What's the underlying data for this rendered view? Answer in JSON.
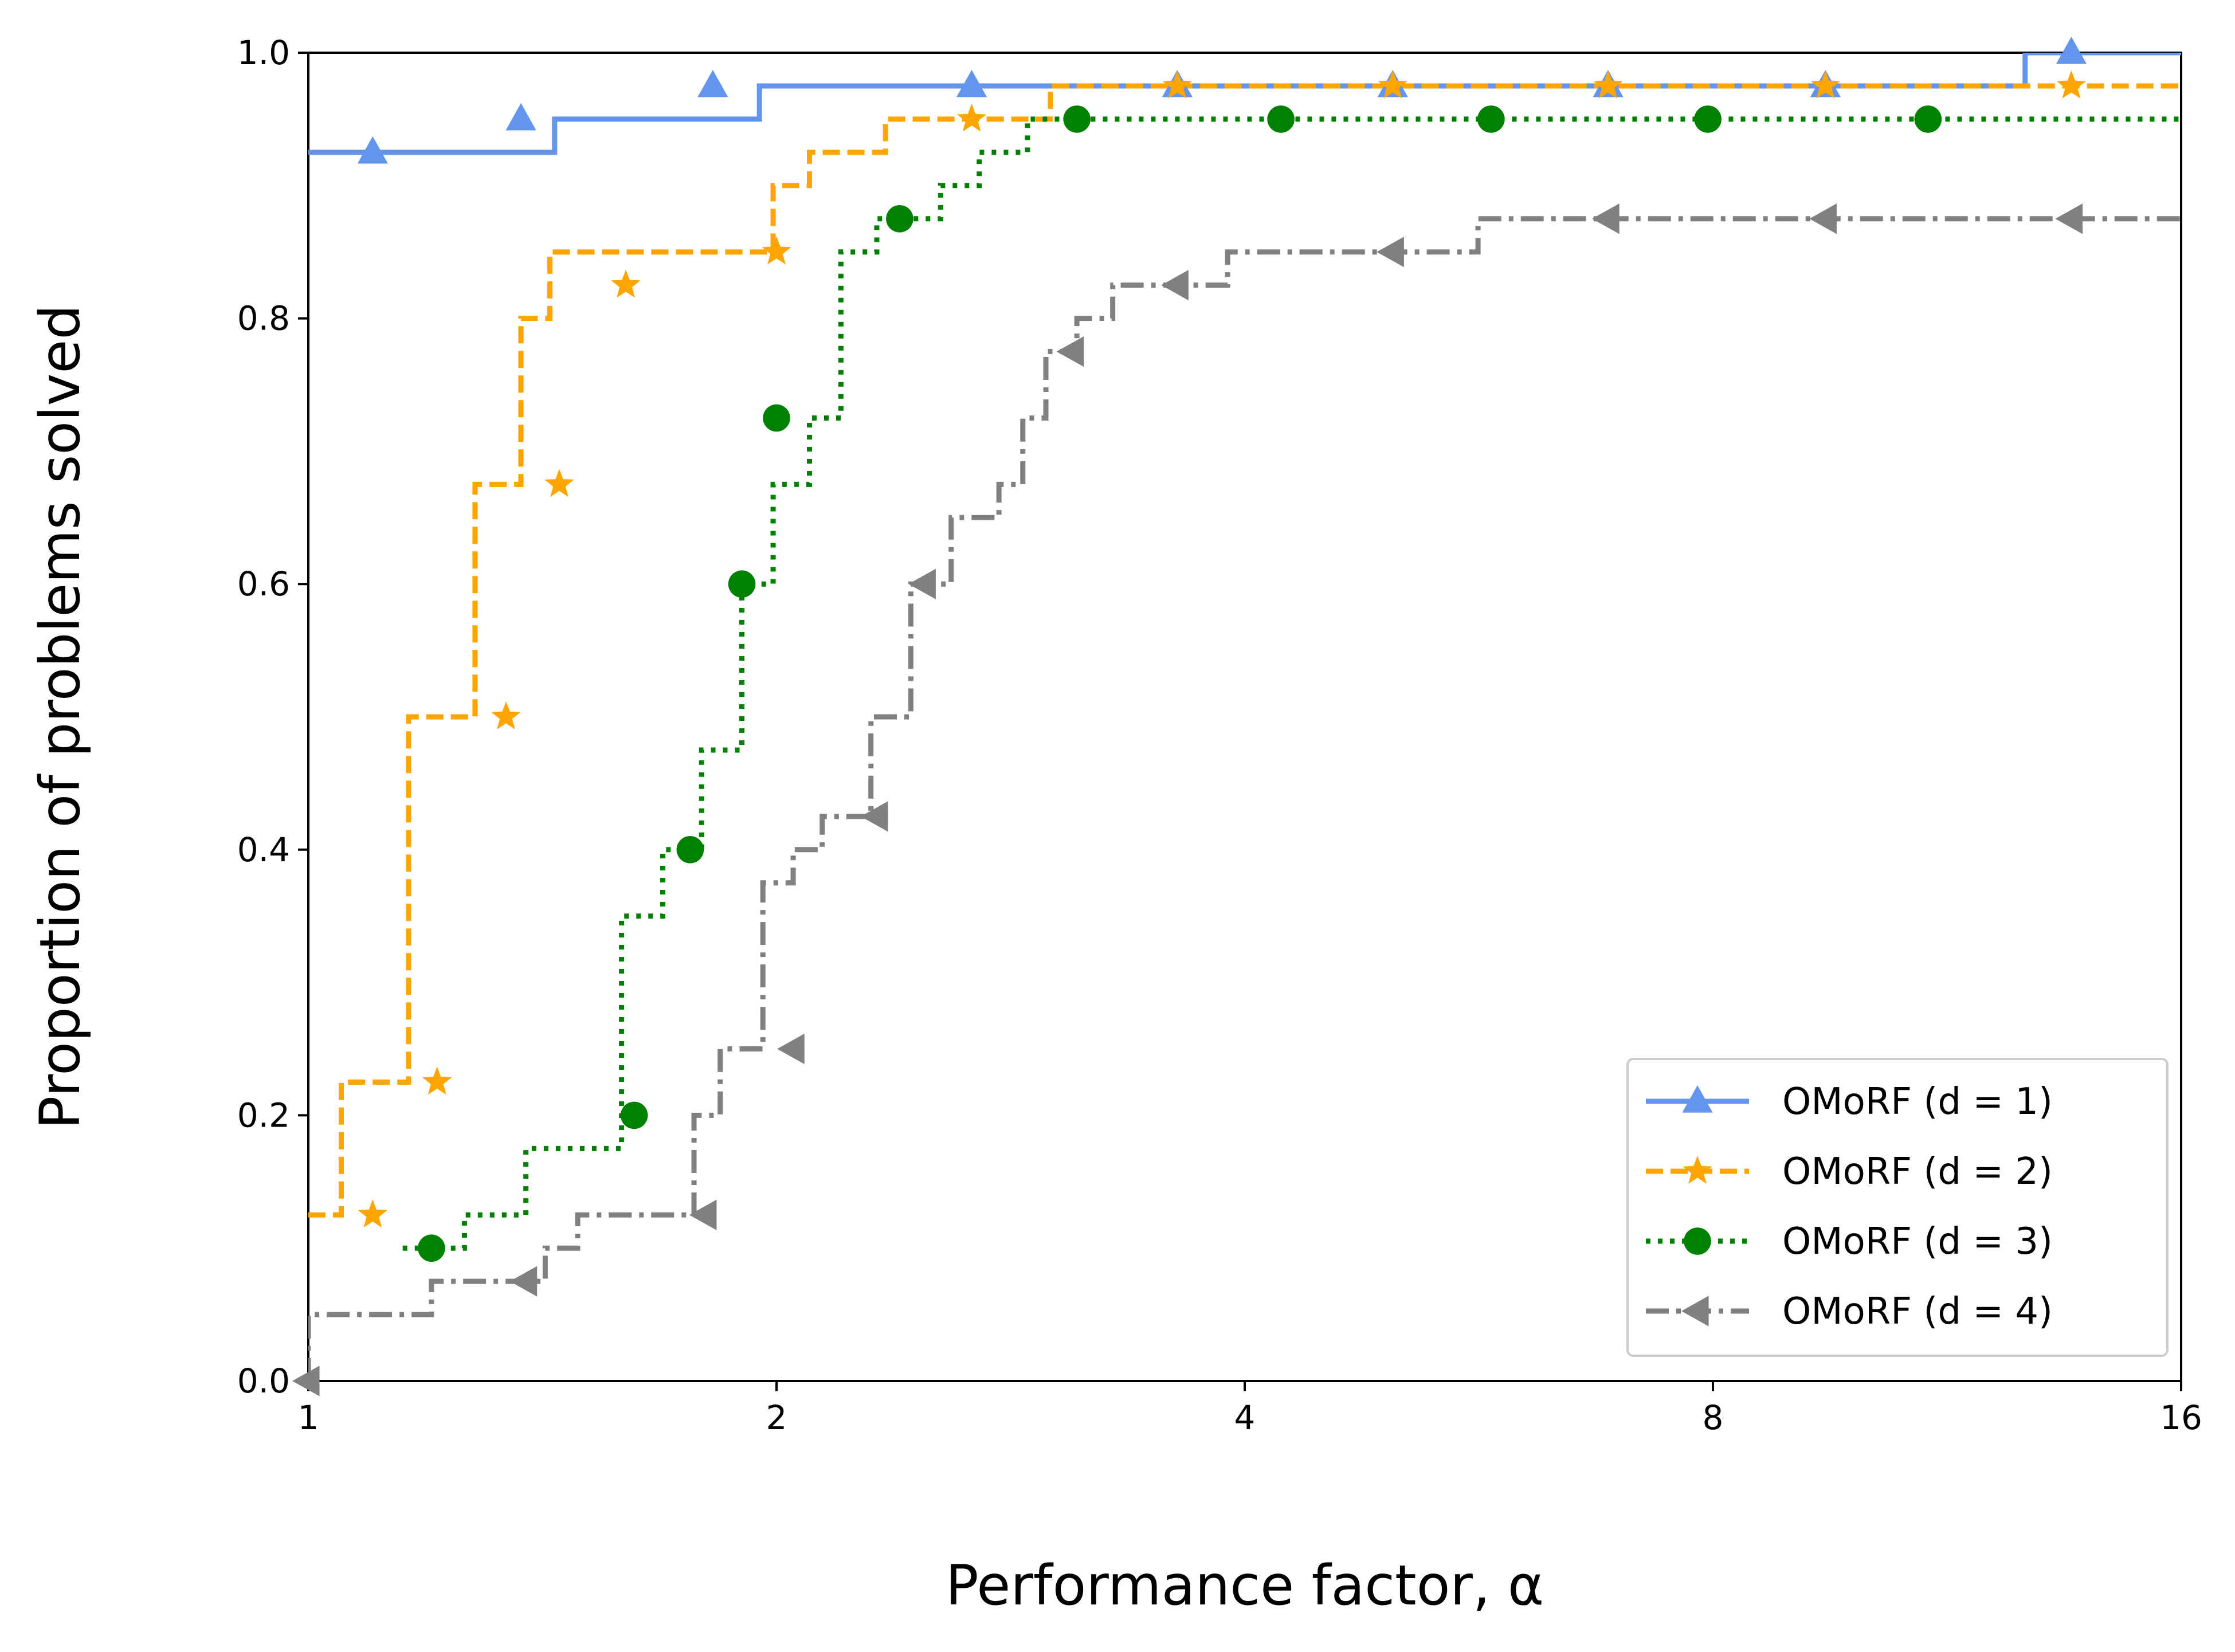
{
  "chart_data": {
    "type": "line",
    "title": "",
    "xlabel": "Performance factor, α",
    "ylabel": "Proportion of problems solved",
    "xscale": "log2",
    "xlim": [
      1,
      16
    ],
    "ylim": [
      0,
      1
    ],
    "xticks": [
      1,
      2,
      4,
      8,
      16
    ],
    "xtick_labels": [
      "1",
      "2",
      "4",
      "8",
      "16"
    ],
    "yticks": [
      0,
      0.2,
      0.4,
      0.6,
      0.8,
      1.0
    ],
    "ytick_labels": [
      "0.0",
      "0.2",
      "0.4",
      "0.6",
      "0.8",
      "1.0"
    ],
    "grid": false,
    "legend_position": "bottom-right",
    "series": [
      {
        "name": "OMoRF (d = 1)",
        "color": "#6495ED",
        "dash": "solid",
        "marker": "triangle-up",
        "steps": [
          [
            1.0,
            0.925
          ],
          [
            1.44,
            0.95
          ],
          [
            1.95,
            0.975
          ],
          [
            12.7,
            1.0
          ],
          [
            16.0,
            1.0
          ]
        ],
        "markers": [
          [
            1.1,
            0.925
          ],
          [
            1.37,
            0.95
          ],
          [
            1.82,
            0.975
          ],
          [
            2.67,
            0.975
          ],
          [
            3.62,
            0.975
          ],
          [
            4.98,
            0.975
          ],
          [
            6.85,
            0.975
          ],
          [
            9.45,
            0.975
          ],
          [
            13.6,
            1.0
          ]
        ]
      },
      {
        "name": "OMoRF (d = 2)",
        "color": "#FFA500",
        "dash": "dashed",
        "marker": "star",
        "steps": [
          [
            1.0,
            0.125
          ],
          [
            1.05,
            0.225
          ],
          [
            1.16,
            0.5
          ],
          [
            1.28,
            0.675
          ],
          [
            1.37,
            0.8
          ],
          [
            1.43,
            0.85
          ],
          [
            1.99,
            0.9
          ],
          [
            2.1,
            0.925
          ],
          [
            2.35,
            0.95
          ],
          [
            3.0,
            0.975
          ],
          [
            16.0,
            0.975
          ]
        ],
        "markers": [
          [
            1.1,
            0.125
          ],
          [
            1.21,
            0.225
          ],
          [
            1.34,
            0.5
          ],
          [
            1.45,
            0.675
          ],
          [
            1.6,
            0.825
          ],
          [
            2.0,
            0.85
          ],
          [
            2.67,
            0.95
          ],
          [
            3.62,
            0.975
          ],
          [
            4.98,
            0.975
          ],
          [
            6.85,
            0.975
          ],
          [
            9.45,
            0.975
          ],
          [
            13.6,
            0.975
          ]
        ]
      },
      {
        "name": "OMoRF (d = 3)",
        "color": "#008000",
        "dash": "dotted",
        "marker": "circle",
        "steps": [
          [
            1.15,
            0.1
          ],
          [
            1.26,
            0.125
          ],
          [
            1.38,
            0.175
          ],
          [
            1.59,
            0.35
          ],
          [
            1.69,
            0.4
          ],
          [
            1.79,
            0.475
          ],
          [
            1.9,
            0.6
          ],
          [
            1.99,
            0.675
          ],
          [
            2.1,
            0.725
          ],
          [
            2.2,
            0.85
          ],
          [
            2.32,
            0.875
          ],
          [
            2.55,
            0.9
          ],
          [
            2.7,
            0.925
          ],
          [
            2.9,
            0.95
          ],
          [
            16.0,
            0.95
          ]
        ],
        "markers": [
          [
            1.2,
            0.1
          ],
          [
            1.62,
            0.2
          ],
          [
            1.76,
            0.4
          ],
          [
            1.9,
            0.6
          ],
          [
            2.0,
            0.725
          ],
          [
            2.4,
            0.875
          ],
          [
            3.12,
            0.95
          ],
          [
            4.22,
            0.95
          ],
          [
            5.76,
            0.95
          ],
          [
            7.94,
            0.95
          ],
          [
            11.0,
            0.95
          ]
        ]
      },
      {
        "name": "OMoRF (d = 4)",
        "color": "#808080",
        "dash": "dashdot",
        "marker": "triangle-left",
        "steps": [
          [
            1.0,
            0.0
          ],
          [
            1.0,
            0.05
          ],
          [
            1.2,
            0.075
          ],
          [
            1.42,
            0.1
          ],
          [
            1.49,
            0.125
          ],
          [
            1.77,
            0.2
          ],
          [
            1.84,
            0.25
          ],
          [
            1.96,
            0.375
          ],
          [
            2.05,
            0.4
          ],
          [
            2.14,
            0.425
          ],
          [
            2.3,
            0.5
          ],
          [
            2.44,
            0.6
          ],
          [
            2.59,
            0.65
          ],
          [
            2.78,
            0.675
          ],
          [
            2.88,
            0.725
          ],
          [
            2.98,
            0.775
          ],
          [
            3.12,
            0.8
          ],
          [
            3.29,
            0.825
          ],
          [
            3.9,
            0.85
          ],
          [
            4.85,
            0.85
          ],
          [
            5.65,
            0.875
          ],
          [
            16.0,
            0.875
          ]
        ],
        "markers": [
          [
            1.0,
            0.0
          ],
          [
            1.38,
            0.075
          ],
          [
            1.8,
            0.125
          ],
          [
            2.05,
            0.25
          ],
          [
            2.32,
            0.425
          ],
          [
            2.49,
            0.6
          ],
          [
            3.1,
            0.775
          ],
          [
            3.62,
            0.825
          ],
          [
            4.98,
            0.85
          ],
          [
            6.85,
            0.875
          ],
          [
            9.45,
            0.875
          ],
          [
            13.6,
            0.875
          ]
        ]
      }
    ]
  }
}
